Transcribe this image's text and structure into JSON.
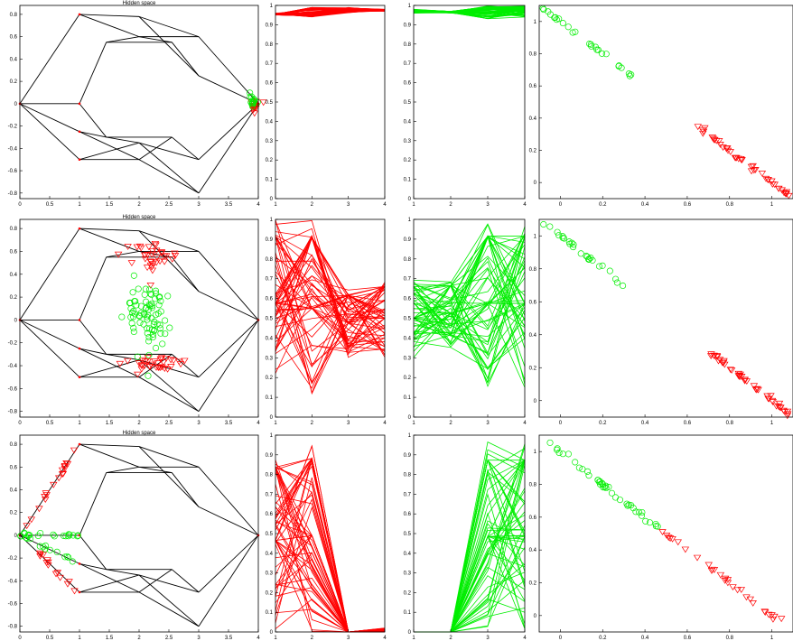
{
  "figure": {
    "rows": 3,
    "cols": 4,
    "colors": {
      "class_a": "#ff0000",
      "class_b": "#00ee00",
      "frame": "#000000",
      "axis": "#000000"
    }
  },
  "chart_data": [
    {
      "type": "scatter",
      "panel": "row1-hidden",
      "title": "Hidden space",
      "xlim": [
        0,
        4
      ],
      "ylim": [
        -0.85,
        0.88
      ],
      "xticks": [
        0,
        0.5,
        1,
        1.5,
        2,
        2.5,
        3,
        3.5,
        4
      ],
      "yticks": [
        -0.8,
        -0.6,
        -0.4,
        -0.2,
        0,
        0.2,
        0.4,
        0.6,
        0.8
      ],
      "clusters": [
        {
          "class": "red",
          "marker": "triangle-down",
          "center": [
            3.93,
            0.0
          ],
          "spread": [
            0.04,
            0.04
          ],
          "count": 15
        },
        {
          "class": "green",
          "marker": "circle",
          "center": [
            3.92,
            0.01
          ],
          "spread": [
            0.03,
            0.03
          ],
          "count": 15
        }
      ]
    },
    {
      "type": "line",
      "panel": "row1-red",
      "x": [
        1,
        2,
        3,
        4
      ],
      "ylim": [
        0,
        1
      ],
      "xticks": [
        1,
        2,
        3,
        4
      ],
      "yticks": [
        0,
        0.1,
        0.2,
        0.3,
        0.4,
        0.5,
        0.6,
        0.7,
        0.8,
        0.9,
        1
      ],
      "class": "red",
      "typical": [
        [
          0.96,
          0.95
        ],
        [
          0.99,
          0.94
        ],
        [
          0.96,
          0.99
        ],
        [
          0.97,
          0.98
        ]
      ]
    },
    {
      "type": "line",
      "panel": "row1-green",
      "x": [
        1,
        2,
        3,
        4
      ],
      "ylim": [
        0,
        1
      ],
      "xticks": [
        1,
        2,
        3,
        4
      ],
      "yticks": [
        0,
        0.1,
        0.2,
        0.3,
        0.4,
        0.5,
        0.6,
        0.7,
        0.8,
        0.9,
        1
      ],
      "class": "green",
      "typical": [
        [
          0.96,
          0.98
        ],
        [
          0.96,
          0.97
        ],
        [
          0.93,
          1.0
        ],
        [
          0.94,
          1.0
        ]
      ]
    },
    {
      "type": "scatter",
      "panel": "row1-diag",
      "xlim": [
        -0.1,
        1.1
      ],
      "ylim": [
        -0.1,
        1.1
      ],
      "xticks": [
        0,
        0.2,
        0.4,
        0.6,
        0.8,
        1
      ],
      "yticks": [
        0,
        0.2,
        0.4,
        0.6,
        0.8,
        1
      ],
      "segments": [
        {
          "class": "green",
          "marker": "circle",
          "x_range": [
            -0.09,
            0.37
          ],
          "count": 26
        },
        {
          "class": "red",
          "marker": "triangle-down",
          "x_range": [
            0.65,
            1.08
          ],
          "count": 45
        }
      ]
    },
    {
      "type": "scatter",
      "panel": "row2-hidden",
      "title": "Hidden space",
      "xlim": [
        0,
        4
      ],
      "ylim": [
        -0.85,
        0.88
      ],
      "xticks": [
        0,
        0.5,
        1,
        1.5,
        2,
        2.5,
        3,
        3.5,
        4
      ],
      "yticks": [
        -0.8,
        -0.6,
        -0.4,
        -0.2,
        0,
        0.2,
        0.4,
        0.6,
        0.8
      ],
      "clusters": [
        {
          "class": "red",
          "marker": "triangle-down",
          "center": [
            2.25,
            0.55
          ],
          "spread": [
            0.25,
            0.06
          ],
          "count": 35
        },
        {
          "class": "red",
          "marker": "triangle-down",
          "center": [
            2.25,
            -0.38
          ],
          "spread": [
            0.25,
            0.05
          ],
          "count": 35
        },
        {
          "class": "green",
          "marker": "circle",
          "center": [
            2.15,
            0.02
          ],
          "spread": [
            0.18,
            0.16
          ],
          "count": 80
        }
      ]
    },
    {
      "type": "line",
      "panel": "row2-red",
      "x": [
        1,
        2,
        3,
        4
      ],
      "ylim": [
        0,
        1
      ],
      "xticks": [
        1,
        2,
        3,
        4
      ],
      "yticks": [
        0,
        0.1,
        0.2,
        0.3,
        0.4,
        0.5,
        0.6,
        0.7,
        0.8,
        0.9,
        1
      ],
      "class": "red",
      "typical": [
        [
          0.15,
          1.0
        ],
        [
          0.1,
          1.0
        ],
        [
          0.3,
          0.65
        ],
        [
          0.3,
          0.7
        ]
      ]
    },
    {
      "type": "line",
      "panel": "row2-green",
      "x": [
        1,
        2,
        3,
        4
      ],
      "ylim": [
        0,
        1
      ],
      "xticks": [
        1,
        2,
        3,
        4
      ],
      "yticks": [
        0,
        0.1,
        0.2,
        0.3,
        0.4,
        0.5,
        0.6,
        0.7,
        0.8,
        0.9,
        1
      ],
      "class": "green",
      "typical": [
        [
          0.3,
          0.7
        ],
        [
          0.35,
          0.7
        ],
        [
          0.15,
          1.0
        ],
        [
          0.15,
          1.0
        ]
      ]
    },
    {
      "type": "scatter",
      "panel": "row2-diag",
      "xlim": [
        -0.1,
        1.1
      ],
      "ylim": [
        -0.1,
        1.1
      ],
      "xticks": [
        0,
        0.2,
        0.4,
        0.6,
        0.8,
        1
      ],
      "yticks": [
        0,
        0.2,
        0.4,
        0.6,
        0.8,
        1
      ],
      "segments": [
        {
          "class": "green",
          "marker": "circle",
          "x_range": [
            -0.09,
            0.31
          ],
          "count": 26
        },
        {
          "class": "red",
          "marker": "triangle-down",
          "x_range": [
            0.7,
            1.08
          ],
          "count": 45
        }
      ]
    },
    {
      "type": "scatter",
      "panel": "row3-hidden",
      "title": "Hidden space",
      "xlim": [
        0,
        4
      ],
      "ylim": [
        -0.85,
        0.88
      ],
      "xticks": [
        0,
        0.5,
        1,
        1.5,
        2,
        2.5,
        3,
        3.5,
        4
      ],
      "yticks": [
        -0.8,
        -0.6,
        -0.4,
        -0.2,
        0,
        0.2,
        0.4,
        0.6,
        0.8
      ],
      "clusters": [
        {
          "class": "red",
          "marker": "triangle-down",
          "along": [
            [
              0,
              0
            ],
            [
              1,
              0.8
            ]
          ],
          "range": [
            0.02,
            0.95
          ],
          "count": 18
        },
        {
          "class": "red",
          "marker": "triangle-down",
          "along": [
            [
              0,
              0
            ],
            [
              1,
              -0.5
            ]
          ],
          "range": [
            0.02,
            0.95
          ],
          "count": 14
        },
        {
          "class": "green",
          "marker": "circle",
          "along": [
            [
              0,
              0
            ],
            [
              1,
              0
            ]
          ],
          "range": [
            0.0,
            1.0
          ],
          "count": 18
        },
        {
          "class": "green",
          "marker": "circle",
          "along": [
            [
              0,
              0
            ],
            [
              1,
              -0.25
            ]
          ],
          "range": [
            0.0,
            0.9
          ],
          "count": 14
        }
      ]
    },
    {
      "type": "line",
      "panel": "row3-red",
      "x": [
        1,
        2,
        3,
        4
      ],
      "ylim": [
        0,
        1
      ],
      "xticks": [
        1,
        2,
        3,
        4
      ],
      "yticks": [
        0,
        0.1,
        0.2,
        0.3,
        0.4,
        0.5,
        0.6,
        0.7,
        0.8,
        0.9,
        1
      ],
      "class": "red",
      "typical": [
        [
          0,
          0.93
        ],
        [
          0,
          0.98
        ],
        [
          0,
          0.0
        ],
        [
          0,
          0.02
        ]
      ]
    },
    {
      "type": "line",
      "panel": "row3-green",
      "x": [
        1,
        2,
        3,
        4
      ],
      "ylim": [
        0,
        1
      ],
      "xticks": [
        1,
        2,
        3,
        4
      ],
      "yticks": [
        0,
        0.1,
        0.2,
        0.3,
        0.4,
        0.5,
        0.6,
        0.7,
        0.8,
        0.9,
        1
      ],
      "class": "green",
      "typical": [
        [
          0,
          0.0
        ],
        [
          0,
          0.0
        ],
        [
          0,
          0.97
        ],
        [
          0,
          0.97
        ]
      ]
    },
    {
      "type": "scatter",
      "panel": "row3-diag",
      "xlim": [
        -0.1,
        1.1
      ],
      "ylim": [
        -0.1,
        1.1
      ],
      "xticks": [
        0,
        0.2,
        0.4,
        0.6,
        0.8,
        1
      ],
      "yticks": [
        0,
        0.2,
        0.4,
        0.6,
        0.8,
        1
      ],
      "segments": [
        {
          "class": "green",
          "marker": "circle",
          "x_range": [
            -0.05,
            0.5
          ],
          "count": 40
        },
        {
          "class": "red",
          "marker": "triangle-down",
          "x_range": [
            0.45,
            1.08
          ],
          "count": 30
        }
      ]
    }
  ]
}
